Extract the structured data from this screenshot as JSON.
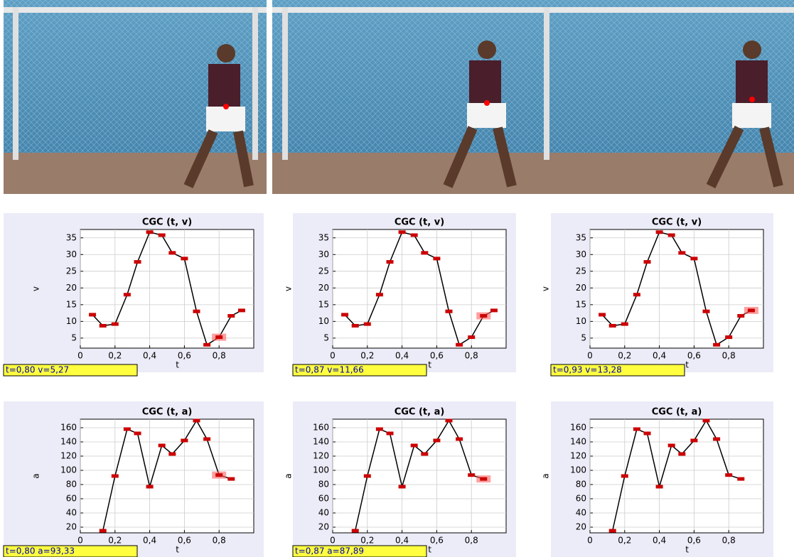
{
  "chart_data": [
    {
      "type": "line",
      "title": "CGC (t, v)",
      "xlabel": "t",
      "ylabel": "v",
      "x": [
        0.07,
        0.13,
        0.2,
        0.27,
        0.33,
        0.4,
        0.47,
        0.53,
        0.6,
        0.67,
        0.73,
        0.8,
        0.87,
        0.93
      ],
      "values": [
        12,
        8.7,
        9.2,
        18,
        27.8,
        36.7,
        35.8,
        30.5,
        28.8,
        13,
        3,
        5.27,
        11.66,
        13.28
      ],
      "color": "#000000",
      "marker_color": "#cc0000",
      "highlight": 11,
      "xlim": [
        0,
        1
      ],
      "ylim": [
        2,
        37.5
      ],
      "xticks": [
        0,
        {
          "value": 0.2,
          "label": "0,2"
        },
        {
          "value": 0.4,
          "label": "0,4"
        },
        {
          "value": 0.6,
          "label": "0,6"
        },
        {
          "value": 0.8,
          "label": "0,8"
        }
      ],
      "yticks": [
        5,
        10,
        15,
        20,
        25,
        30,
        35
      ],
      "grid": true,
      "status": "t=0,80  v=5,27"
    },
    {
      "type": "line",
      "title": "CGC (t, v)",
      "xlabel": "t",
      "ylabel": "v",
      "x": [
        0.07,
        0.13,
        0.2,
        0.27,
        0.33,
        0.4,
        0.47,
        0.53,
        0.6,
        0.67,
        0.73,
        0.8,
        0.87,
        0.93
      ],
      "values": [
        12,
        8.7,
        9.2,
        18,
        27.8,
        36.7,
        35.8,
        30.5,
        28.8,
        13,
        3,
        5.27,
        11.66,
        13.28
      ],
      "color": "#000000",
      "marker_color": "#cc0000",
      "highlight": 12,
      "xlim": [
        0,
        1
      ],
      "ylim": [
        2,
        37.5
      ],
      "xticks": [
        0,
        {
          "value": 0.2,
          "label": "0,2"
        },
        {
          "value": 0.4,
          "label": "0,4"
        },
        {
          "value": 0.6,
          "label": "0,6"
        },
        {
          "value": 0.8,
          "label": "0,8"
        }
      ],
      "yticks": [
        5,
        10,
        15,
        20,
        25,
        30,
        35
      ],
      "grid": true,
      "status": "t=0,87  v=11,66"
    },
    {
      "type": "line",
      "title": "CGC (t, v)",
      "xlabel": "t",
      "ylabel": "v",
      "x": [
        0.07,
        0.13,
        0.2,
        0.27,
        0.33,
        0.4,
        0.47,
        0.53,
        0.6,
        0.67,
        0.73,
        0.8,
        0.87,
        0.93
      ],
      "values": [
        12,
        8.7,
        9.2,
        18,
        27.8,
        36.7,
        35.8,
        30.5,
        28.8,
        13,
        3,
        5.27,
        11.66,
        13.28
      ],
      "color": "#000000",
      "marker_color": "#cc0000",
      "highlight": 13,
      "xlim": [
        0,
        1
      ],
      "ylim": [
        2,
        37.5
      ],
      "xticks": [
        0,
        {
          "value": 0.2,
          "label": "0,2"
        },
        {
          "value": 0.4,
          "label": "0,4"
        },
        {
          "value": 0.6,
          "label": "0,6"
        },
        {
          "value": 0.8,
          "label": "0,8"
        }
      ],
      "yticks": [
        5,
        10,
        15,
        20,
        25,
        30,
        35
      ],
      "grid": true,
      "status": "t=0,93  v=13,28"
    },
    {
      "type": "line",
      "title": "CGC (t, a)",
      "xlabel": "t",
      "ylabel": "a",
      "x": [
        0.13,
        0.2,
        0.27,
        0.33,
        0.4,
        0.47,
        0.53,
        0.6,
        0.67,
        0.73,
        0.8,
        0.87
      ],
      "values": [
        15,
        92,
        158,
        152,
        77,
        135,
        123,
        142,
        170,
        144,
        93.33,
        87.89
      ],
      "color": "#000000",
      "marker_color": "#cc0000",
      "highlight": 10,
      "xlim": [
        0,
        1
      ],
      "ylim": [
        12,
        172
      ],
      "xticks": [
        0,
        {
          "value": 0.2,
          "label": "0,2"
        },
        {
          "value": 0.4,
          "label": "0,4"
        },
        {
          "value": 0.6,
          "label": "0,6"
        },
        {
          "value": 0.8,
          "label": "0,8"
        }
      ],
      "yticks": [
        20,
        40,
        60,
        80,
        100,
        120,
        140,
        160
      ],
      "grid": true,
      "status": "t=0,80  a=93,33"
    },
    {
      "type": "line",
      "title": "CGC (t, a)",
      "xlabel": "t",
      "ylabel": "a",
      "x": [
        0.13,
        0.2,
        0.27,
        0.33,
        0.4,
        0.47,
        0.53,
        0.6,
        0.67,
        0.73,
        0.8,
        0.87
      ],
      "values": [
        15,
        92,
        158,
        152,
        77,
        135,
        123,
        142,
        170,
        144,
        93.33,
        87.89
      ],
      "color": "#000000",
      "marker_color": "#cc0000",
      "highlight": 11,
      "xlim": [
        0,
        1
      ],
      "ylim": [
        12,
        172
      ],
      "xticks": [
        0,
        {
          "value": 0.2,
          "label": "0,2"
        },
        {
          "value": 0.4,
          "label": "0,4"
        },
        {
          "value": 0.6,
          "label": "0,6"
        },
        {
          "value": 0.8,
          "label": "0,8"
        }
      ],
      "yticks": [
        20,
        40,
        60,
        80,
        100,
        120,
        140,
        160
      ],
      "grid": true,
      "status": "t=0,87  a=87,89"
    },
    {
      "type": "line",
      "title": "CGC (t, a)",
      "xlabel": "t",
      "ylabel": "a",
      "x": [
        0.13,
        0.2,
        0.27,
        0.33,
        0.4,
        0.47,
        0.53,
        0.6,
        0.67,
        0.73,
        0.8,
        0.87
      ],
      "values": [
        15,
        92,
        158,
        152,
        77,
        135,
        123,
        142,
        170,
        144,
        93.33,
        87.89
      ],
      "color": "#000000",
      "marker_color": "#cc0000",
      "xlim": [
        0,
        1
      ],
      "ylim": [
        12,
        172
      ],
      "xticks": [
        0,
        {
          "value": 0.2,
          "label": "0,2"
        },
        {
          "value": 0.4,
          "label": "0,4"
        },
        {
          "value": 0.6,
          "label": "0,6"
        },
        {
          "value": 0.8,
          "label": "0,8"
        }
      ],
      "yticks": [
        20,
        40,
        60,
        80,
        100,
        120,
        140,
        160
      ],
      "grid": true
    }
  ]
}
